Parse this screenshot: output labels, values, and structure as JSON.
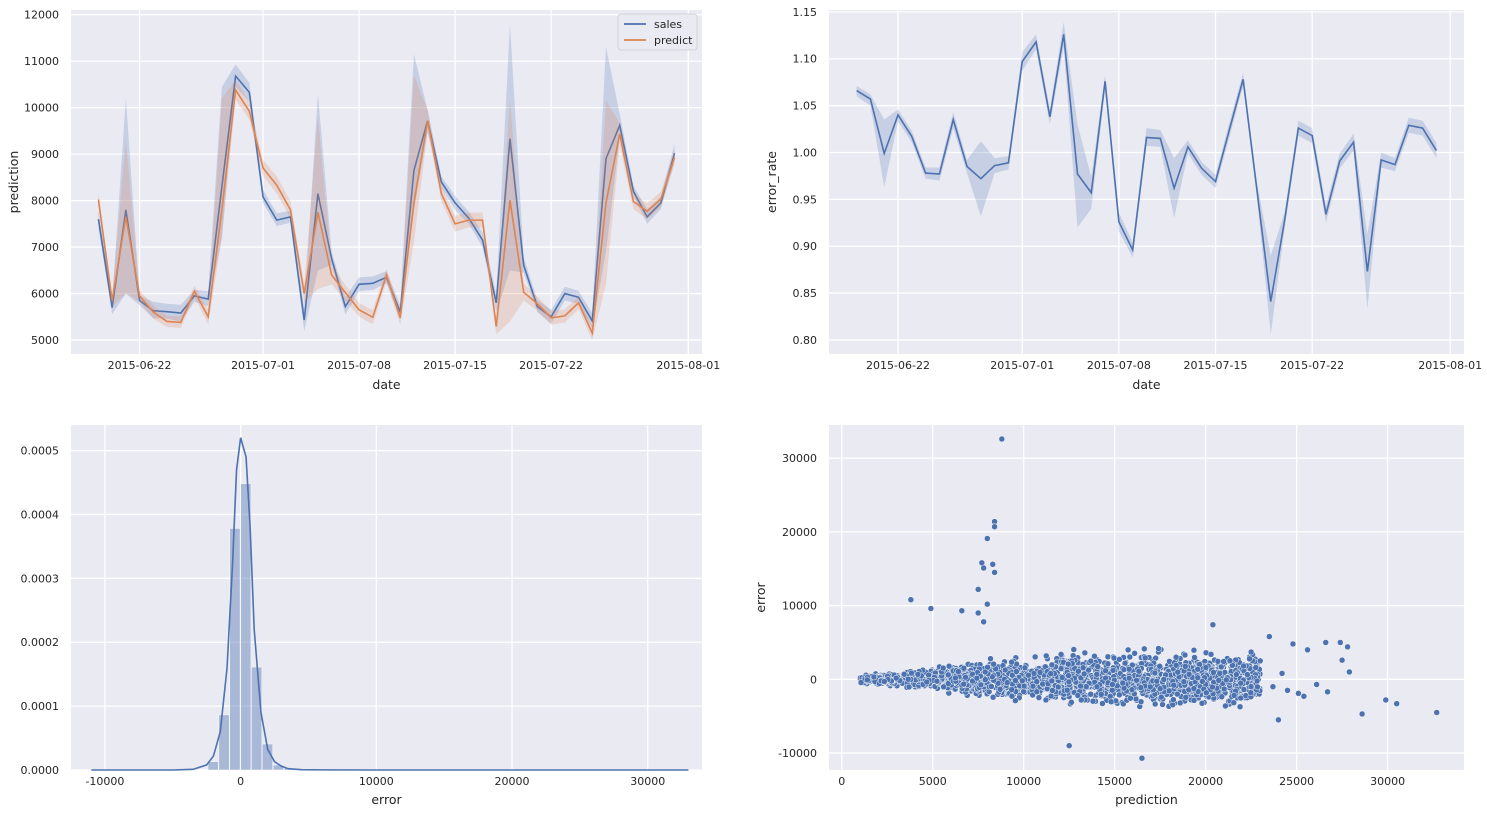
{
  "colors": {
    "sales": "#4c72b0",
    "predict": "#dd8452",
    "panel": "#eaeaf2",
    "grid": "#ffffff"
  },
  "chart_data": [
    {
      "id": "sales-vs-predict",
      "type": "line",
      "xlabel": "date",
      "ylabel": "prediction",
      "x": [
        "2015-06-19",
        "2015-06-20",
        "2015-06-21",
        "2015-06-22",
        "2015-06-23",
        "2015-06-24",
        "2015-06-25",
        "2015-06-26",
        "2015-06-27",
        "2015-06-28",
        "2015-06-29",
        "2015-06-30",
        "2015-07-01",
        "2015-07-02",
        "2015-07-03",
        "2015-07-04",
        "2015-07-05",
        "2015-07-06",
        "2015-07-07",
        "2015-07-08",
        "2015-07-09",
        "2015-07-10",
        "2015-07-11",
        "2015-07-12",
        "2015-07-13",
        "2015-07-14",
        "2015-07-15",
        "2015-07-16",
        "2015-07-17",
        "2015-07-18",
        "2015-07-19",
        "2015-07-20",
        "2015-07-21",
        "2015-07-22",
        "2015-07-23",
        "2015-07-24",
        "2015-07-25",
        "2015-07-26",
        "2015-07-27",
        "2015-07-28",
        "2015-07-29",
        "2015-07-30",
        "2015-07-31"
      ],
      "xticks": [
        "2015-06-22",
        "2015-07-01",
        "2015-07-08",
        "2015-07-15",
        "2015-07-22",
        "2015-08-01"
      ],
      "yticks": [
        5000,
        6000,
        7000,
        8000,
        9000,
        10000,
        11000,
        12000
      ],
      "ylim": [
        4700,
        12100
      ],
      "series": [
        {
          "name": "sales",
          "color_key": "sales",
          "values": [
            7600,
            5700,
            7800,
            5850,
            5630,
            5610,
            5580,
            5950,
            5880,
            8300,
            10680,
            10330,
            8080,
            7580,
            7650,
            5430,
            8150,
            6750,
            5720,
            6200,
            6220,
            6350,
            5600,
            8650,
            9720,
            8400,
            7950,
            7620,
            7150,
            5800,
            9330,
            6610,
            5720,
            5500,
            6000,
            5920,
            5410,
            8900,
            9620,
            8200,
            7650,
            7950,
            9020
          ],
          "lower": [
            7400,
            5560,
            6000,
            5750,
            5470,
            5460,
            5400,
            5820,
            5730,
            7200,
            10450,
            10130,
            7950,
            7450,
            7530,
            5200,
            6500,
            6620,
            5550,
            6050,
            6080,
            6220,
            5450,
            7800,
            9480,
            8280,
            7800,
            7500,
            7000,
            5600,
            6500,
            6450,
            5600,
            5350,
            5850,
            5780,
            5250,
            6900,
            9350,
            8100,
            7500,
            7820,
            8850
          ],
          "upper": [
            7800,
            5860,
            10200,
            5960,
            5820,
            5780,
            5760,
            6080,
            6050,
            10450,
            10930,
            10530,
            8230,
            7730,
            7780,
            5680,
            10300,
            6900,
            5920,
            6350,
            6370,
            6480,
            5750,
            11150,
            9950,
            8520,
            8100,
            7760,
            7320,
            6000,
            11800,
            6780,
            5860,
            5650,
            6150,
            6060,
            5580,
            11300,
            9870,
            8320,
            7810,
            8090,
            9220
          ]
        },
        {
          "name": "predict",
          "color_key": "predict",
          "values": [
            8020,
            5850,
            7650,
            5950,
            5600,
            5400,
            5380,
            6050,
            5500,
            7800,
            10380,
            9920,
            8700,
            8330,
            7800,
            6000,
            7750,
            6400,
            6020,
            5650,
            5490,
            6400,
            5480,
            7950,
            9720,
            8150,
            7500,
            7580,
            7580,
            5290,
            8010,
            6030,
            5780,
            5480,
            5520,
            5800,
            5150,
            7950,
            9430,
            7980,
            7770,
            8030,
            8930
          ],
          "lower": [
            7870,
            5730,
            6000,
            5830,
            5460,
            5280,
            5260,
            5930,
            5340,
            7200,
            10180,
            9740,
            8530,
            8150,
            7620,
            5800,
            6100,
            6200,
            5850,
            5500,
            5340,
            6260,
            5330,
            7100,
            9500,
            7980,
            7330,
            7420,
            7420,
            5120,
            5400,
            5850,
            5630,
            5330,
            5380,
            5660,
            5000,
            6200,
            9200,
            7820,
            7600,
            7870,
            8770
          ],
          "upper": [
            8170,
            5970,
            9300,
            6070,
            5740,
            5520,
            5500,
            6170,
            5660,
            10200,
            10600,
            10120,
            8870,
            8520,
            7980,
            6200,
            9800,
            6600,
            6190,
            5800,
            5640,
            6540,
            5630,
            10700,
            9950,
            8320,
            7670,
            7740,
            7740,
            5460,
            10200,
            6220,
            5930,
            5630,
            5660,
            5940,
            5300,
            10150,
            9660,
            8140,
            7940,
            8190,
            9100
          ]
        }
      ],
      "legend": {
        "position": "upper-right",
        "entries": [
          "sales",
          "predict"
        ]
      }
    },
    {
      "id": "error-rate",
      "type": "line",
      "xlabel": "date",
      "ylabel": "error_rate",
      "x": [
        "2015-06-19",
        "2015-06-20",
        "2015-06-21",
        "2015-06-22",
        "2015-06-23",
        "2015-06-24",
        "2015-06-25",
        "2015-06-26",
        "2015-06-27",
        "2015-06-28",
        "2015-06-29",
        "2015-06-30",
        "2015-07-01",
        "2015-07-02",
        "2015-07-03",
        "2015-07-04",
        "2015-07-05",
        "2015-07-06",
        "2015-07-07",
        "2015-07-08",
        "2015-07-09",
        "2015-07-10",
        "2015-07-11",
        "2015-07-12",
        "2015-07-13",
        "2015-07-14",
        "2015-07-15",
        "2015-07-16",
        "2015-07-17",
        "2015-07-18",
        "2015-07-19",
        "2015-07-20",
        "2015-07-21",
        "2015-07-22",
        "2015-07-23",
        "2015-07-24",
        "2015-07-25",
        "2015-07-26",
        "2015-07-27",
        "2015-07-28",
        "2015-07-29",
        "2015-07-30",
        "2015-07-31"
      ],
      "xticks": [
        "2015-06-22",
        "2015-07-01",
        "2015-07-08",
        "2015-07-15",
        "2015-07-22",
        "2015-08-01"
      ],
      "yticks": [
        "0.80",
        "0.85",
        "0.90",
        "0.95",
        "1.00",
        "1.05",
        "1.10",
        "1.15"
      ],
      "ylim": [
        0.785,
        1.152
      ],
      "series": [
        {
          "name": "error_rate",
          "color_key": "sales",
          "values": [
            1.066,
            1.057,
            0.999,
            1.04,
            1.017,
            0.978,
            0.977,
            1.035,
            0.985,
            0.972,
            0.986,
            0.989,
            1.097,
            1.118,
            1.038,
            1.126,
            0.977,
            0.957,
            1.076,
            0.926,
            0.896,
            1.016,
            1.015,
            0.962,
            1.006,
            0.983,
            0.969,
            1.024,
            1.078,
            0.96,
            0.841,
            0.927,
            1.026,
            1.018,
            0.934,
            0.991,
            1.011,
            0.873,
            0.992,
            0.987,
            1.029,
            1.026,
            1.002
          ],
          "lower": [
            1.06,
            1.05,
            0.963,
            1.033,
            1.011,
            0.972,
            0.97,
            1.026,
            0.978,
            0.932,
            0.978,
            0.982,
            1.087,
            1.11,
            1.03,
            1.113,
            0.92,
            0.94,
            1.067,
            0.916,
            0.888,
            1.007,
            1.006,
            0.93,
            0.999,
            0.976,
            0.962,
            1.016,
            1.071,
            0.952,
            0.806,
            0.918,
            1.018,
            1.01,
            0.925,
            0.983,
            1.002,
            0.833,
            0.984,
            0.98,
            1.021,
            1.018,
            0.994
          ],
          "upper": [
            1.071,
            1.062,
            1.035,
            1.046,
            1.023,
            0.984,
            0.984,
            1.043,
            0.992,
            1.012,
            0.994,
            0.996,
            1.107,
            1.126,
            1.046,
            1.139,
            1.03,
            0.974,
            1.083,
            0.936,
            0.904,
            1.026,
            1.024,
            0.994,
            1.013,
            0.99,
            0.976,
            1.032,
            1.085,
            0.968,
            0.89,
            0.936,
            1.034,
            1.026,
            0.943,
            0.999,
            1.02,
            0.913,
            1.0,
            0.994,
            1.037,
            1.034,
            1.01
          ]
        }
      ]
    },
    {
      "id": "error-distribution",
      "type": "histogram",
      "xlabel": "error",
      "ylabel": "",
      "xlim": [
        -12500,
        34000
      ],
      "ylim": [
        0,
        0.00054
      ],
      "xticks": [
        "-10000",
        "0",
        "10000",
        "20000",
        "30000"
      ],
      "yticks": [
        "0.0000",
        "0.0001",
        "0.0002",
        "0.0003",
        "0.0004",
        "0.0005"
      ],
      "bins": [
        {
          "start": -2400,
          "end": -1600,
          "density": 1.28e-05
        },
        {
          "start": -1600,
          "end": -800,
          "density": 8.62e-05
        },
        {
          "start": -800,
          "end": 0,
          "density": 0.000378
        },
        {
          "start": 0,
          "end": 800,
          "density": 0.000448
        },
        {
          "start": 800,
          "end": 1600,
          "density": 0.000161
        },
        {
          "start": 1600,
          "end": 2400,
          "density": 4.06e-05
        },
        {
          "start": 2400,
          "end": 3200,
          "density": 7.8e-06
        },
        {
          "start": 3200,
          "end": 4000,
          "density": 2.8e-06
        }
      ],
      "kde": {
        "x": [
          -11000,
          -5000,
          -3500,
          -2500,
          -2000,
          -1500,
          -1000,
          -600,
          -300,
          0,
          200,
          400,
          700,
          1000,
          1500,
          2000,
          2500,
          3000,
          3500,
          4500,
          6000,
          10000,
          33000
        ],
        "y": [
          0,
          0,
          1e-06,
          8e-06,
          2.2e-05,
          6e-05,
          0.00016,
          0.00032,
          0.00047,
          0.00052,
          0.000505,
          0.00049,
          0.00038,
          0.00022,
          9e-05,
          3.2e-05,
          1.3e-05,
          6e-06,
          2e-06,
          5e-07,
          2e-07,
          0,
          0
        ]
      }
    },
    {
      "id": "error-vs-prediction",
      "type": "scatter",
      "xlabel": "prediction",
      "ylabel": "error",
      "xlim": [
        -700,
        34200
      ],
      "ylim": [
        -12300,
        34500
      ],
      "xticks": [
        "0",
        "5000",
        "10000",
        "15000",
        "20000",
        "25000",
        "30000"
      ],
      "yticks": [
        "-10000",
        "0",
        "10000",
        "20000",
        "30000"
      ],
      "outliers": [
        [
          8800,
          32600
        ],
        [
          8400,
          21400
        ],
        [
          8400,
          20700
        ],
        [
          8000,
          19100
        ],
        [
          8300,
          15600
        ],
        [
          7700,
          15800
        ],
        [
          7800,
          15100
        ],
        [
          8400,
          14500
        ],
        [
          7500,
          12200
        ],
        [
          3800,
          10800
        ],
        [
          4900,
          9600
        ],
        [
          7500,
          9000
        ],
        [
          6600,
          9300
        ],
        [
          8000,
          10200
        ],
        [
          7800,
          7800
        ],
        [
          16500,
          -10700
        ],
        [
          12500,
          -9000
        ],
        [
          28600,
          -4700
        ],
        [
          30500,
          -3300
        ],
        [
          29900,
          -2800
        ],
        [
          32700,
          -4500
        ],
        [
          24000,
          -5500
        ],
        [
          27800,
          4400
        ],
        [
          26600,
          5000
        ],
        [
          27400,
          5000
        ],
        [
          24800,
          4800
        ],
        [
          25600,
          4000
        ],
        [
          23500,
          5800
        ],
        [
          20400,
          7400
        ],
        [
          24500,
          -1500
        ],
        [
          26700,
          -1700
        ],
        [
          27900,
          1000
        ],
        [
          27500,
          2600
        ],
        [
          25400,
          -2300
        ],
        [
          25100,
          -1900
        ],
        [
          26100,
          -700
        ],
        [
          22500,
          3700
        ],
        [
          23000,
          2500
        ],
        [
          23700,
          -1000
        ],
        [
          24200,
          800
        ]
      ],
      "cloud": {
        "count": 2600,
        "x_range": [
          1000,
          23000
        ],
        "center": 11000
      }
    }
  ]
}
